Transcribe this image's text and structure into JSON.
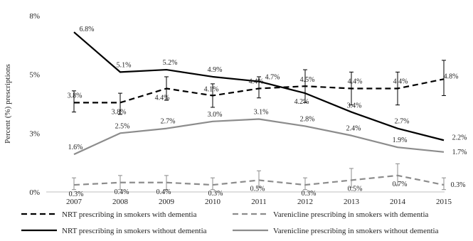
{
  "chart_data": {
    "type": "line",
    "title": "",
    "xlabel": "",
    "ylabel": "Percent (%) prescriptions",
    "x": [
      "2007",
      "2008",
      "2009",
      "2010",
      "2011",
      "2012",
      "2013",
      "2014",
      "2015"
    ],
    "y_ticks": [
      0,
      2.5,
      5,
      7.5
    ],
    "y_tick_labels": [
      "0%",
      "3%",
      "5%",
      "8%"
    ],
    "ylim": [
      0,
      7.5
    ],
    "grid": false,
    "legend_position": "bottom",
    "series": [
      {
        "name": "NRT prescribing in smokers with dementia",
        "values": [
          3.8,
          3.8,
          4.4,
          4.1,
          4.4,
          4.5,
          4.4,
          4.4,
          4.8
        ],
        "labels": [
          "3.8%",
          "3.8%",
          "4.4%",
          "4.1%",
          "4.4%",
          "4.5%",
          "4.4%",
          "4.4%",
          "4.8%"
        ],
        "error_low": [
          3.4,
          3.3,
          3.9,
          3.6,
          4.0,
          3.8,
          3.7,
          3.7,
          4.1
        ],
        "error_high": [
          4.3,
          4.2,
          4.9,
          4.6,
          4.9,
          5.2,
          5.1,
          5.1,
          5.6
        ],
        "color": "#000000",
        "dash": "dashed",
        "label_offsets": [
          [
            1,
            -10
          ],
          [
            -2,
            13
          ],
          [
            -6,
            13
          ],
          [
            -2,
            -9
          ],
          [
            -4,
            -10
          ],
          [
            3,
            -9
          ],
          [
            5,
            -10
          ],
          [
            4,
            -10
          ],
          [
            10,
            -4
          ]
        ]
      },
      {
        "name": "Varenicline prescribing in smokers with dementia",
        "values": [
          0.3,
          0.4,
          0.4,
          0.3,
          0.5,
          0.3,
          0.5,
          0.7,
          0.3
        ],
        "labels": [
          "0.3%",
          "0.4%",
          "0.4%",
          "0.3%",
          "0.5%",
          "0.3%",
          "0.5%",
          "0.7%",
          "0.3%"
        ],
        "error_low": [
          0.1,
          0.1,
          0.1,
          0.1,
          0.2,
          0.1,
          0.2,
          0.3,
          0.1
        ],
        "error_high": [
          0.6,
          0.7,
          0.7,
          0.6,
          0.9,
          0.6,
          1.0,
          1.2,
          0.6
        ],
        "color": "#8c8c8c",
        "dash": "dashed",
        "label_offsets": [
          [
            3,
            13
          ],
          [
            2,
            13
          ],
          [
            -4,
            13
          ],
          [
            4,
            12
          ],
          [
            -2,
            12
          ],
          [
            5,
            12
          ],
          [
            5,
            12
          ],
          [
            3,
            12
          ],
          [
            20,
            0
          ]
        ]
      },
      {
        "name": "NRT prescribing in smokers without dementia",
        "values": [
          6.8,
          5.1,
          5.2,
          4.9,
          4.7,
          4.2,
          3.4,
          2.7,
          2.2
        ],
        "labels": [
          "6.8%",
          "5.1%",
          "5.2%",
          "4.9%",
          "4.7%",
          "4.2%",
          "3.4%",
          "2.7%",
          "2.2%"
        ],
        "color": "#000000",
        "dash": "solid",
        "label_offsets": [
          [
            18,
            -4
          ],
          [
            5,
            -10
          ],
          [
            5,
            -10
          ],
          [
            3,
            -10
          ],
          [
            19,
            -6
          ],
          [
            -5,
            12
          ],
          [
            4,
            -9
          ],
          [
            6,
            -10
          ],
          [
            22,
            -4
          ]
        ]
      },
      {
        "name": "Varenicline prescribing in smokers without dementia",
        "values": [
          1.6,
          2.5,
          2.7,
          3.0,
          3.1,
          2.8,
          2.4,
          1.9,
          1.7
        ],
        "labels": [
          "1.6%",
          "2.5%",
          "2.7%",
          "3.0%",
          "3.1%",
          "2.8%",
          "2.4%",
          "1.9%",
          "1.7%"
        ],
        "color": "#8c8c8c",
        "dash": "solid",
        "label_offsets": [
          [
            2,
            -10
          ],
          [
            3,
            -10
          ],
          [
            2,
            -10
          ],
          [
            3,
            -10
          ],
          [
            3,
            -10
          ],
          [
            3,
            -10
          ],
          [
            3,
            -10
          ],
          [
            3,
            -10
          ],
          [
            22,
            0
          ]
        ]
      }
    ]
  }
}
